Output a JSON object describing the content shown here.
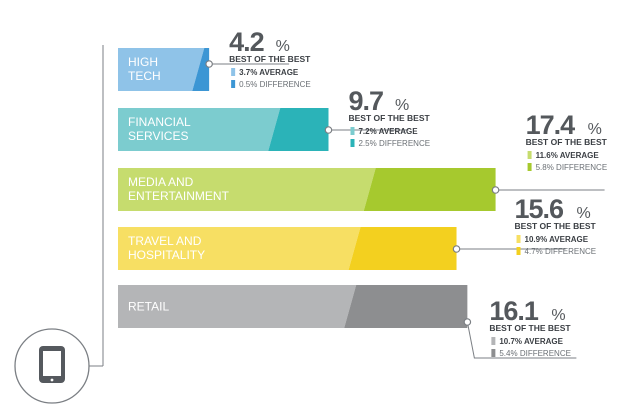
{
  "chart_data": {
    "type": "bar",
    "orientation": "horizontal",
    "categories": [
      {
        "label_lines": [
          "HIGH",
          "TECH"
        ],
        "color": "#3c96d4",
        "light_color": "#8fc3e8"
      },
      {
        "label_lines": [
          "FINANCIAL",
          "SERVICES"
        ],
        "color": "#2bb3b8",
        "light_color": "#7ccccf"
      },
      {
        "label_lines": [
          "MEDIA AND",
          "ENTERTAINMENT"
        ],
        "color": "#a6c92e",
        "light_color": "#c6dc6e"
      },
      {
        "label_lines": [
          "TRAVEL AND",
          "HOSPITALITY"
        ],
        "color": "#f3d01f",
        "light_color": "#f7df63"
      },
      {
        "label_lines": [
          "RETAIL"
        ],
        "color": "#8d8e90",
        "light_color": "#b4b5b7"
      }
    ],
    "best_of_the_best": [
      4.2,
      9.7,
      17.4,
      15.6,
      16.1
    ],
    "average": [
      3.7,
      7.2,
      11.6,
      10.9,
      10.7
    ],
    "difference": [
      0.5,
      2.5,
      5.8,
      4.7,
      5.4
    ],
    "value_labels": [
      "4.2",
      "9.7",
      "17.4",
      "15.6",
      "16.1"
    ],
    "percent_sign": "%",
    "best_label": "BEST OF THE BEST",
    "average_labels": [
      "3.7% AVERAGE",
      "7.2% AVERAGE",
      "11.6% AVERAGE",
      "10.9% AVERAGE",
      "10.7% AVERAGE"
    ],
    "difference_labels": [
      "0.5% DIFFERENCE",
      "2.5% DIFFERENCE",
      "5.8% DIFFERENCE",
      "4.7% DIFFERENCE",
      "5.4% DIFFERENCE"
    ],
    "accent_line_color": "#7b7f84",
    "icon": "tablet-icon"
  }
}
